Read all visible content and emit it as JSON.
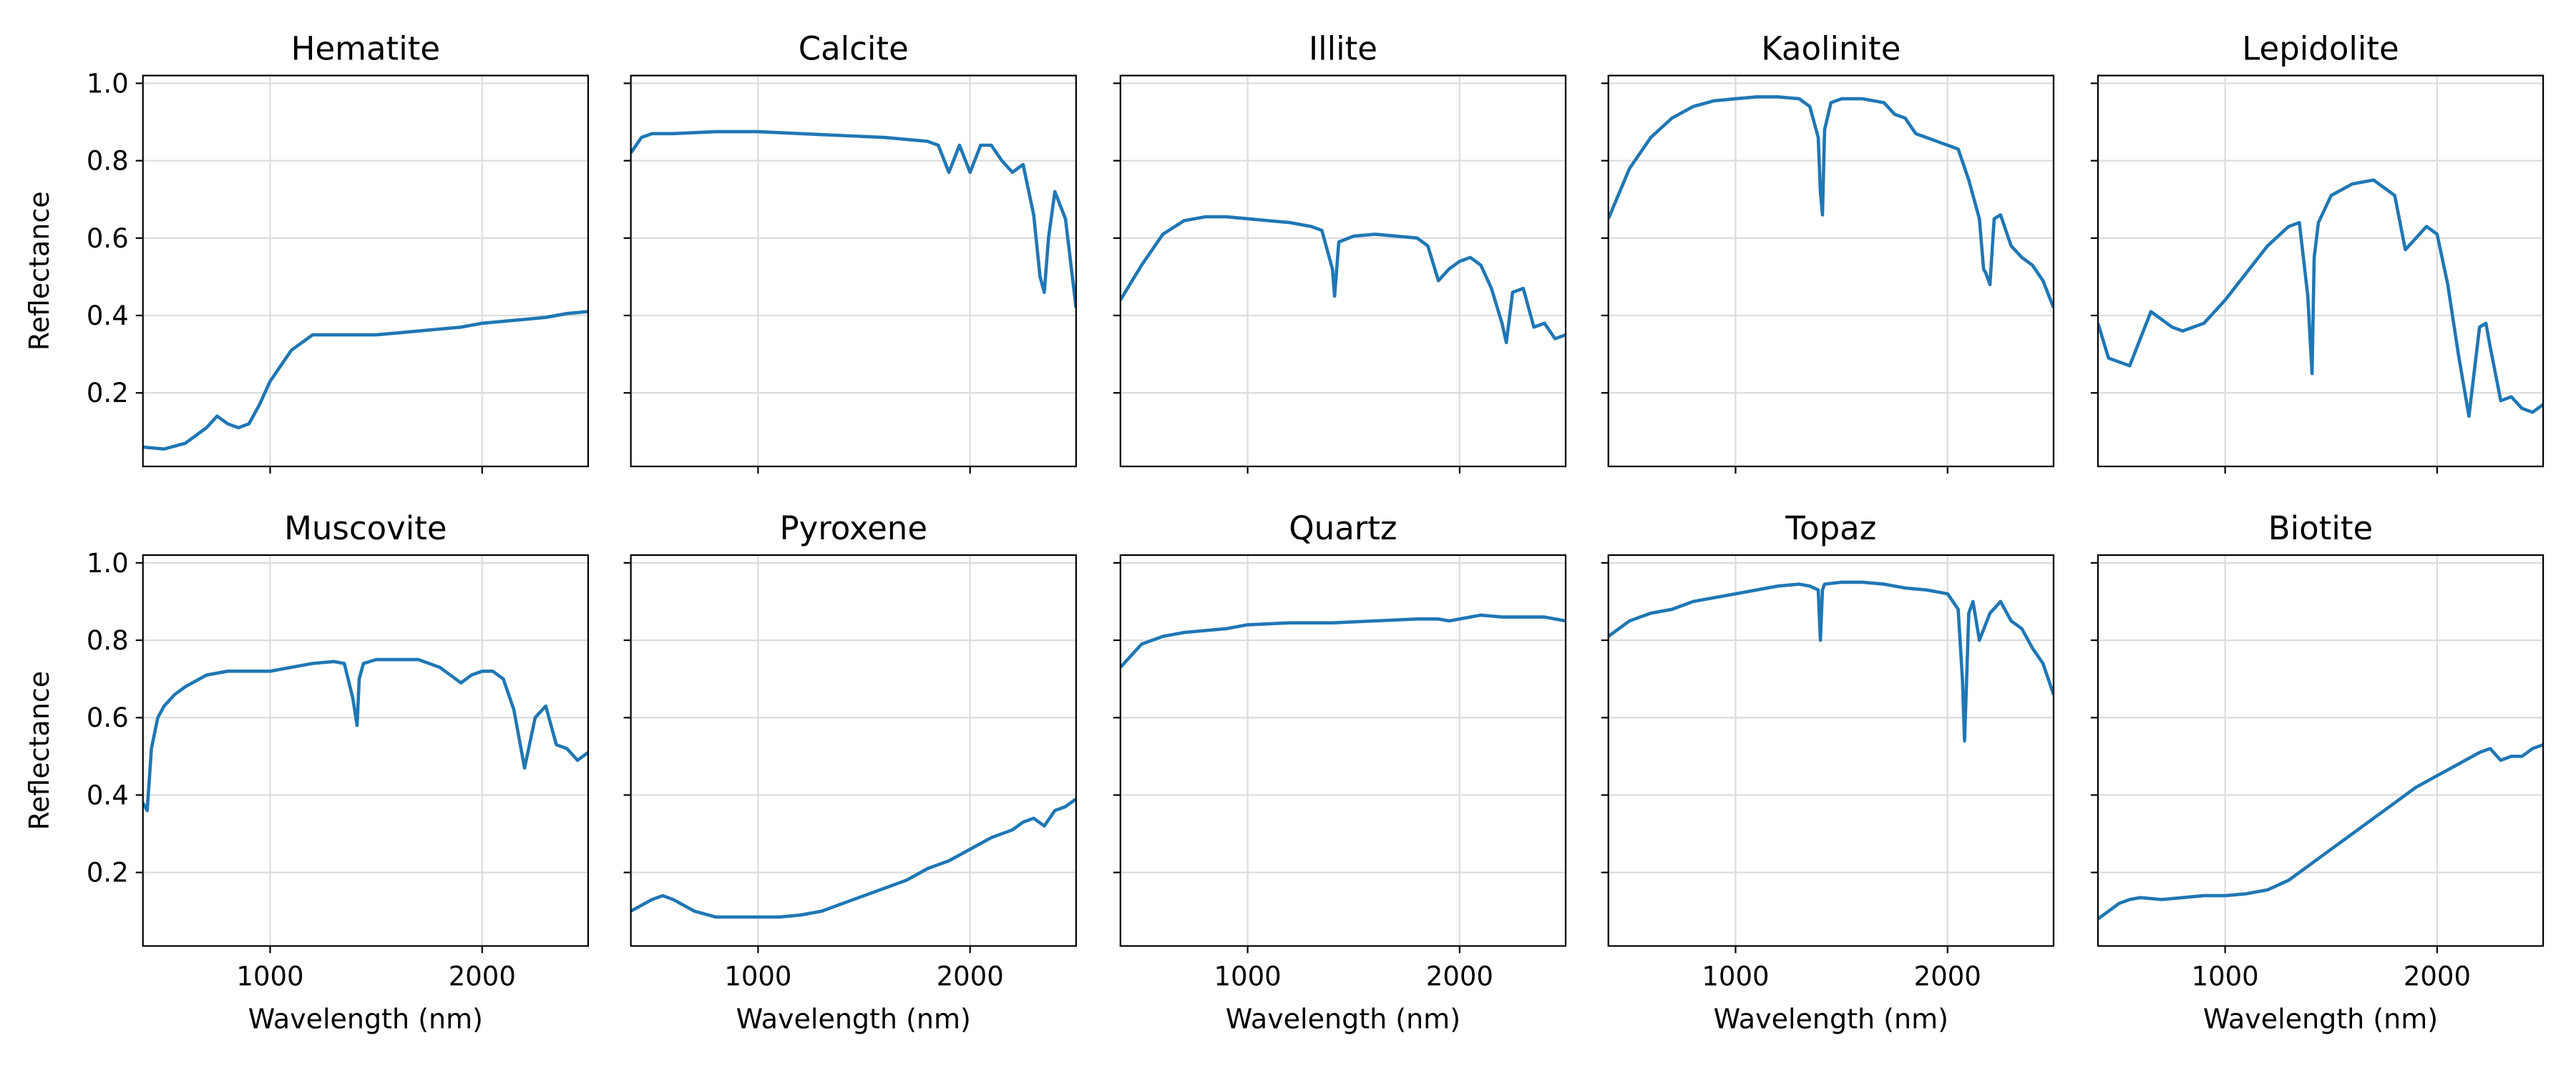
{
  "figure": {
    "line_color": "#1f77b4",
    "grid_color": "#dcdcdc",
    "grid": true,
    "xlim": [
      400,
      2500
    ],
    "ylim": [
      0.01,
      1.02
    ],
    "xticks": [
      1000,
      2000
    ],
    "yticks": [
      0.2,
      0.4,
      0.6,
      0.8,
      1.0
    ],
    "xtick_labels": [
      "1000",
      "2000"
    ],
    "ytick_labels": [
      "0.2",
      "0.4",
      "0.6",
      "0.8",
      "1.0"
    ],
    "xlabel": "Wavelength (nm)",
    "ylabel": "Reflectance",
    "layout": "2 rows x 5 columns, shared axes"
  },
  "chart_data": [
    {
      "type": "line",
      "title": "Hematite",
      "x": [
        400,
        500,
        600,
        700,
        750,
        800,
        850,
        900,
        950,
        1000,
        1100,
        1200,
        1300,
        1400,
        1500,
        1600,
        1700,
        1800,
        1900,
        2000,
        2100,
        2200,
        2300,
        2400,
        2500
      ],
      "y": [
        0.06,
        0.055,
        0.07,
        0.11,
        0.14,
        0.12,
        0.11,
        0.12,
        0.17,
        0.23,
        0.31,
        0.35,
        0.35,
        0.35,
        0.35,
        0.355,
        0.36,
        0.365,
        0.37,
        0.38,
        0.385,
        0.39,
        0.395,
        0.405,
        0.41
      ]
    },
    {
      "type": "line",
      "title": "Calcite",
      "x": [
        400,
        450,
        500,
        600,
        800,
        1000,
        1200,
        1400,
        1600,
        1700,
        1800,
        1850,
        1900,
        1950,
        2000,
        2050,
        2100,
        2150,
        2200,
        2250,
        2300,
        2330,
        2350,
        2370,
        2400,
        2450,
        2500
      ],
      "y": [
        0.82,
        0.86,
        0.87,
        0.87,
        0.875,
        0.875,
        0.87,
        0.865,
        0.86,
        0.855,
        0.85,
        0.84,
        0.77,
        0.84,
        0.77,
        0.84,
        0.84,
        0.8,
        0.77,
        0.79,
        0.66,
        0.5,
        0.46,
        0.6,
        0.72,
        0.65,
        0.42
      ]
    },
    {
      "type": "line",
      "title": "Illite",
      "x": [
        400,
        500,
        600,
        700,
        800,
        900,
        1000,
        1100,
        1200,
        1300,
        1350,
        1400,
        1410,
        1430,
        1500,
        1600,
        1700,
        1800,
        1850,
        1900,
        1950,
        2000,
        2050,
        2100,
        2150,
        2200,
        2220,
        2250,
        2300,
        2350,
        2400,
        2450,
        2500
      ],
      "y": [
        0.44,
        0.53,
        0.61,
        0.645,
        0.655,
        0.655,
        0.65,
        0.645,
        0.64,
        0.63,
        0.62,
        0.52,
        0.45,
        0.59,
        0.605,
        0.61,
        0.605,
        0.6,
        0.58,
        0.49,
        0.52,
        0.54,
        0.55,
        0.53,
        0.47,
        0.38,
        0.33,
        0.46,
        0.47,
        0.37,
        0.38,
        0.34,
        0.35
      ]
    },
    {
      "type": "line",
      "title": "Kaolinite",
      "x": [
        400,
        500,
        600,
        700,
        800,
        900,
        1000,
        1100,
        1200,
        1300,
        1350,
        1390,
        1400,
        1410,
        1420,
        1450,
        1500,
        1600,
        1700,
        1750,
        1800,
        1850,
        1900,
        1950,
        2000,
        2050,
        2100,
        2150,
        2170,
        2180,
        2200,
        2220,
        2250,
        2300,
        2350,
        2400,
        2450,
        2500
      ],
      "y": [
        0.65,
        0.78,
        0.86,
        0.91,
        0.94,
        0.955,
        0.96,
        0.965,
        0.965,
        0.96,
        0.94,
        0.86,
        0.72,
        0.66,
        0.88,
        0.95,
        0.96,
        0.96,
        0.95,
        0.92,
        0.91,
        0.87,
        0.86,
        0.85,
        0.84,
        0.83,
        0.75,
        0.65,
        0.52,
        0.51,
        0.48,
        0.65,
        0.66,
        0.58,
        0.55,
        0.53,
        0.49,
        0.42
      ]
    },
    {
      "type": "line",
      "title": "Lepidolite",
      "x": [
        400,
        450,
        500,
        550,
        600,
        650,
        700,
        750,
        800,
        900,
        1000,
        1100,
        1200,
        1300,
        1350,
        1390,
        1410,
        1420,
        1440,
        1500,
        1600,
        1700,
        1750,
        1800,
        1850,
        1900,
        1950,
        2000,
        2050,
        2100,
        2150,
        2200,
        2230,
        2250,
        2300,
        2350,
        2400,
        2450,
        2500
      ],
      "y": [
        0.38,
        0.29,
        0.28,
        0.27,
        0.34,
        0.41,
        0.39,
        0.37,
        0.36,
        0.38,
        0.44,
        0.51,
        0.58,
        0.63,
        0.64,
        0.45,
        0.25,
        0.55,
        0.64,
        0.71,
        0.74,
        0.75,
        0.73,
        0.71,
        0.57,
        0.6,
        0.63,
        0.61,
        0.48,
        0.3,
        0.14,
        0.37,
        0.38,
        0.32,
        0.18,
        0.19,
        0.16,
        0.15,
        0.17
      ]
    },
    {
      "type": "line",
      "title": "Muscovite",
      "x": [
        400,
        420,
        440,
        470,
        500,
        550,
        600,
        700,
        800,
        900,
        1000,
        1100,
        1200,
        1300,
        1350,
        1390,
        1410,
        1420,
        1440,
        1500,
        1600,
        1700,
        1750,
        1800,
        1850,
        1900,
        1950,
        2000,
        2050,
        2100,
        2150,
        2200,
        2250,
        2300,
        2350,
        2400,
        2450,
        2500
      ],
      "y": [
        0.38,
        0.36,
        0.52,
        0.6,
        0.63,
        0.66,
        0.68,
        0.71,
        0.72,
        0.72,
        0.72,
        0.73,
        0.74,
        0.745,
        0.74,
        0.65,
        0.58,
        0.7,
        0.74,
        0.75,
        0.75,
        0.75,
        0.74,
        0.73,
        0.71,
        0.69,
        0.71,
        0.72,
        0.72,
        0.7,
        0.62,
        0.47,
        0.6,
        0.63,
        0.53,
        0.52,
        0.49,
        0.51
      ]
    },
    {
      "type": "line",
      "title": "Pyroxene",
      "x": [
        400,
        450,
        500,
        550,
        600,
        700,
        800,
        900,
        1000,
        1100,
        1200,
        1300,
        1400,
        1500,
        1600,
        1700,
        1800,
        1900,
        2000,
        2100,
        2200,
        2250,
        2300,
        2350,
        2400,
        2450,
        2500
      ],
      "y": [
        0.1,
        0.115,
        0.13,
        0.14,
        0.13,
        0.1,
        0.085,
        0.085,
        0.085,
        0.085,
        0.09,
        0.1,
        0.12,
        0.14,
        0.16,
        0.18,
        0.21,
        0.23,
        0.26,
        0.29,
        0.31,
        0.33,
        0.34,
        0.32,
        0.36,
        0.37,
        0.39
      ]
    },
    {
      "type": "line",
      "title": "Quartz",
      "x": [
        400,
        450,
        500,
        600,
        700,
        800,
        900,
        1000,
        1200,
        1400,
        1600,
        1800,
        1900,
        1950,
        2000,
        2100,
        2200,
        2300,
        2400,
        2500
      ],
      "y": [
        0.73,
        0.76,
        0.79,
        0.81,
        0.82,
        0.825,
        0.83,
        0.84,
        0.845,
        0.845,
        0.85,
        0.855,
        0.855,
        0.85,
        0.855,
        0.865,
        0.86,
        0.86,
        0.86,
        0.85
      ]
    },
    {
      "type": "line",
      "title": "Topaz",
      "x": [
        400,
        500,
        600,
        700,
        800,
        900,
        1000,
        1100,
        1200,
        1300,
        1350,
        1390,
        1400,
        1410,
        1420,
        1500,
        1600,
        1700,
        1800,
        1900,
        1950,
        2000,
        2050,
        2070,
        2080,
        2090,
        2100,
        2120,
        2150,
        2200,
        2250,
        2300,
        2350,
        2400,
        2450,
        2500
      ],
      "y": [
        0.81,
        0.85,
        0.87,
        0.88,
        0.9,
        0.91,
        0.92,
        0.93,
        0.94,
        0.945,
        0.94,
        0.93,
        0.8,
        0.93,
        0.945,
        0.95,
        0.95,
        0.945,
        0.935,
        0.93,
        0.925,
        0.92,
        0.88,
        0.7,
        0.54,
        0.7,
        0.87,
        0.9,
        0.8,
        0.87,
        0.9,
        0.85,
        0.83,
        0.78,
        0.74,
        0.66
      ]
    },
    {
      "type": "line",
      "title": "Biotite",
      "x": [
        400,
        450,
        500,
        550,
        600,
        700,
        800,
        900,
        1000,
        1100,
        1200,
        1300,
        1400,
        1500,
        1600,
        1700,
        1800,
        1900,
        2000,
        2100,
        2200,
        2250,
        2300,
        2350,
        2400,
        2450,
        2500
      ],
      "y": [
        0.08,
        0.1,
        0.12,
        0.13,
        0.135,
        0.13,
        0.135,
        0.14,
        0.14,
        0.145,
        0.155,
        0.18,
        0.22,
        0.26,
        0.3,
        0.34,
        0.38,
        0.42,
        0.45,
        0.48,
        0.51,
        0.52,
        0.49,
        0.5,
        0.5,
        0.52,
        0.53
      ]
    }
  ]
}
